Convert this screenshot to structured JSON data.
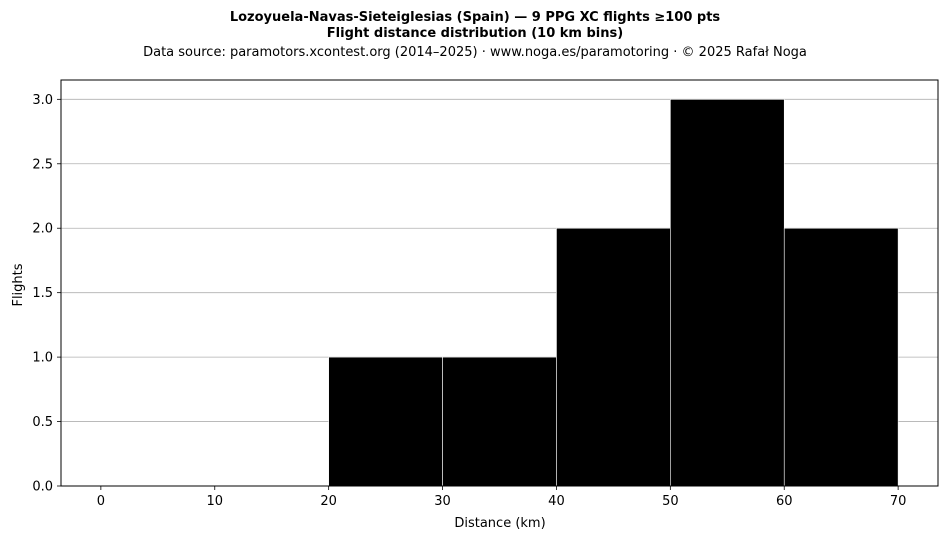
{
  "chart_data": {
    "type": "bar",
    "title_line1": "Lozoyuela-Navas-Sieteiglesias (Spain)  —  9 PPG XC flights ≥100 pts",
    "title_line2": "Flight distance distribution (10 km bins)",
    "subtitle": "Data source: paramotors.xcontest.org (2014–2025)  ·  www.noga.es/paramotoring  ·  © 2025 Rafał Noga",
    "xlabel": "Distance (km)",
    "ylabel": "Flights",
    "bins": [
      {
        "start": 20,
        "end": 30,
        "value": 1
      },
      {
        "start": 30,
        "end": 40,
        "value": 1
      },
      {
        "start": 40,
        "end": 50,
        "value": 2
      },
      {
        "start": 50,
        "end": 60,
        "value": 3
      },
      {
        "start": 60,
        "end": 70,
        "value": 2
      }
    ],
    "xlim": [
      -3.5,
      73.5
    ],
    "ylim": [
      0,
      3.15
    ],
    "xticks": [
      0,
      10,
      20,
      30,
      40,
      50,
      60,
      70
    ],
    "yticks": [
      0.0,
      0.5,
      1.0,
      1.5,
      2.0,
      2.5,
      3.0
    ],
    "ytick_labels": [
      "0.0",
      "0.5",
      "1.0",
      "1.5",
      "2.0",
      "2.5",
      "3.0"
    ],
    "grid": "y",
    "bar_color": "#000000",
    "bar_edge_color": "#ffffff",
    "grid_color": "#b0b0b0"
  }
}
